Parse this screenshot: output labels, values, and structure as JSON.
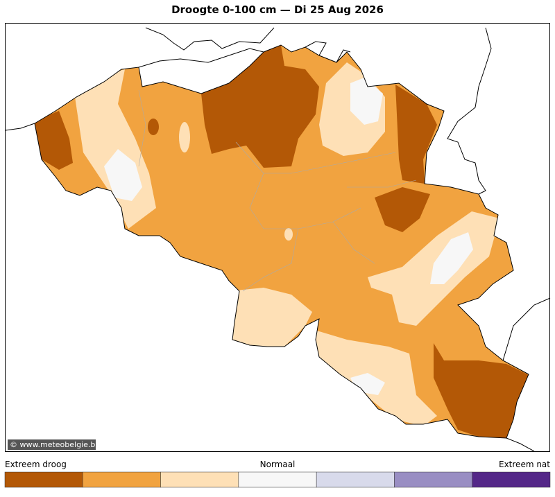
{
  "title": "Droogte 0-100 cm  —  Di 25 Aug 2026",
  "credit": "© www.meteobelgie.be",
  "legend": {
    "labels": {
      "left": "Extreem droog",
      "center": "Normaal",
      "right": "Extreem nat"
    },
    "colors": [
      "#b35806",
      "#f1a340",
      "#fee0b6",
      "#f7f7f7",
      "#d8daeb",
      "#998ec3",
      "#542788"
    ]
  }
}
